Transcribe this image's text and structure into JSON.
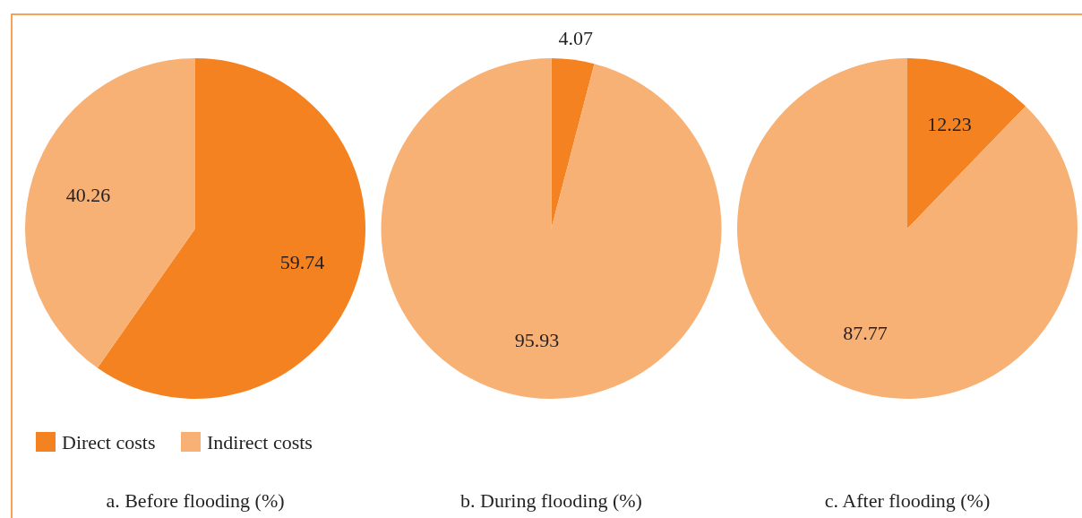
{
  "chart_data": [
    {
      "type": "pie",
      "title": "a. Before flooding (%)",
      "categories": [
        "Direct costs",
        "Indirect costs"
      ],
      "values": [
        59.74,
        40.26
      ],
      "colors": [
        "#f58220",
        "#f8b175"
      ],
      "data_labels": true,
      "legend": "bottom left"
    },
    {
      "type": "pie",
      "title": "b. During flooding (%)",
      "categories": [
        null,
        null
      ],
      "values": [
        4.07,
        95.93
      ],
      "colors": [
        "#f58220",
        "#f8b175"
      ],
      "data_labels": true
    },
    {
      "type": "pie",
      "title": "c. After flooding (%)",
      "categories": [
        null,
        null
      ],
      "values": [
        12.23,
        87.77
      ],
      "colors": [
        "#f58220",
        "#f8b175"
      ],
      "data_labels": true
    }
  ]
}
